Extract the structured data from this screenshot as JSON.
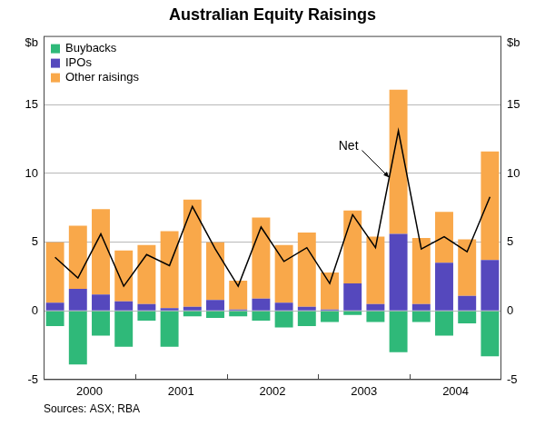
{
  "chart_data": {
    "type": "bar",
    "title": "Australian Equity Raisings",
    "y_label": "$b",
    "source": "Sources: ASX; RBA",
    "categories": [
      null,
      "2000",
      null,
      null,
      null,
      "2001",
      null,
      null,
      null,
      "2002",
      null,
      null,
      null,
      "2003",
      null,
      null,
      null,
      "2004",
      null,
      null
    ],
    "series": [
      {
        "name": "Buybacks",
        "color": "#2fb979",
        "values": [
          -1.1,
          -3.9,
          -1.8,
          -2.6,
          -0.7,
          -2.6,
          -0.4,
          -0.5,
          -0.4,
          -0.7,
          -1.2,
          -1.1,
          -0.8,
          -0.3,
          -0.8,
          -3.0,
          -0.8,
          -1.8,
          -0.9,
          -3.3
        ]
      },
      {
        "name": "IPOs",
        "color": "#5548bd",
        "values": [
          0.6,
          1.6,
          1.2,
          0.7,
          0.5,
          0.2,
          0.3,
          0.8,
          0.1,
          0.9,
          0.6,
          0.3,
          0.1,
          2.0,
          0.5,
          5.6,
          0.5,
          3.5,
          1.1,
          3.7
        ]
      },
      {
        "name": "Other raisings",
        "color": "#f9a84a",
        "values": [
          4.4,
          4.6,
          6.2,
          3.7,
          4.3,
          5.6,
          7.8,
          4.2,
          2.1,
          5.9,
          4.2,
          5.4,
          2.7,
          5.3,
          4.9,
          10.5,
          4.8,
          3.7,
          4.1,
          7.9
        ]
      },
      {
        "name": "Net",
        "type": "line",
        "color": "#000000",
        "values": [
          3.9,
          2.4,
          5.6,
          1.8,
          4.1,
          3.3,
          7.6,
          4.5,
          1.8,
          6.1,
          3.6,
          4.6,
          2.0,
          7.0,
          4.6,
          13.1,
          4.5,
          5.4,
          4.3,
          8.3
        ]
      }
    ],
    "stacked": true,
    "ylim": [
      -5,
      20
    ],
    "yticks": [
      -5,
      0,
      5,
      10,
      15
    ],
    "grid": true,
    "legend": "upper left",
    "annotations": [
      {
        "text": "Net",
        "series": "Net"
      }
    ]
  }
}
